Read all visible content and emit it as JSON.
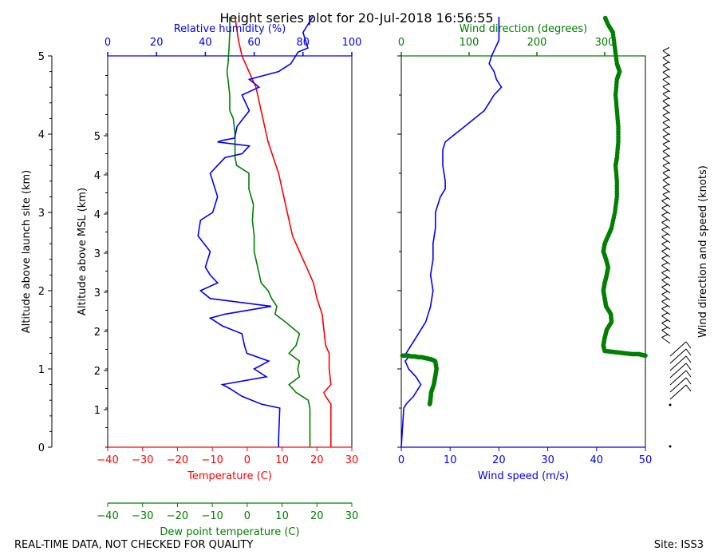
{
  "title": "Height series plot for 20-Jul-2018 16:56:55",
  "footer_left": "REAL-TIME DATA, NOT CHECKED FOR QUALITY",
  "footer_right": "Site: ISS3",
  "colors": {
    "temperature": "#ff0000",
    "dewpoint": "#008000",
    "humidity": "#0000ff",
    "wind_speed": "#0000ff",
    "wind_direction": "#008000",
    "axis": "#000000"
  },
  "chart_data": [
    {
      "type": "line",
      "panel": "thermodynamic",
      "ylabel_left": "Altitude above launch site (km)",
      "ylabel_right": "Altitude above MSL (km)",
      "x_bottom_label": "Temperature (C)",
      "x_bottom2_label": "Dew point temperature (C)",
      "x_top_label": "Relative humidity (%)",
      "x_bottom_ticks": [
        -40,
        -30,
        -20,
        -10,
        0,
        10,
        20,
        30
      ],
      "x_top_ticks": [
        0,
        20,
        40,
        60,
        80,
        100
      ],
      "y_left_ticks": [
        0,
        1,
        2,
        3,
        4,
        5
      ],
      "y_msl_ticks": [
        "1",
        "2",
        "2",
        "3",
        "3",
        "4",
        "4",
        "5"
      ],
      "xlim_temperature": [
        -40,
        30
      ],
      "xlim_humidity": [
        0,
        100
      ],
      "ylim_km": [
        0,
        5
      ],
      "series": [
        {
          "name": "Temperature (C)",
          "x": [
            24,
            24,
            24,
            22.5,
            22,
            24,
            23.5,
            23.5,
            22.5,
            22,
            21.5,
            20,
            19,
            17,
            15,
            13,
            12,
            11,
            10,
            9,
            7.5,
            6,
            5,
            4,
            3,
            2.5,
            1.5,
            0.5,
            -0.5,
            -1.5,
            -2.5,
            -3.5
          ],
          "y": [
            0,
            0.5,
            0.55,
            0.65,
            0.7,
            0.8,
            1.0,
            1.2,
            1.3,
            1.5,
            1.7,
            1.9,
            2.1,
            2.3,
            2.5,
            2.7,
            2.9,
            3.1,
            3.3,
            3.5,
            3.7,
            3.9,
            4.1,
            4.3,
            4.5,
            4.6,
            4.7,
            4.8,
            4.9,
            5.0,
            5.2,
            5.5
          ]
        },
        {
          "name": "Dew point temperature (C)",
          "x": [
            18,
            18,
            18,
            17.5,
            14,
            12,
            15,
            14.5,
            15,
            12,
            14,
            15,
            11,
            8,
            8.5,
            7,
            6,
            4,
            3,
            2,
            2,
            1.5,
            1.8,
            0.5,
            0.5,
            -3,
            -3.5,
            -3.5,
            -3.5,
            -4,
            -5,
            -5,
            -5.5,
            -5.8,
            -5.5,
            -5.2,
            -5,
            -5
          ],
          "y": [
            0,
            0.3,
            0.5,
            0.6,
            0.7,
            0.8,
            0.9,
            1.0,
            1.1,
            1.2,
            1.3,
            1.45,
            1.6,
            1.7,
            1.8,
            1.9,
            2.0,
            2.1,
            2.3,
            2.5,
            2.7,
            2.9,
            3.1,
            3.3,
            3.5,
            3.6,
            3.7,
            3.8,
            4.0,
            4.2,
            4.3,
            4.5,
            4.7,
            4.8,
            4.9,
            5.1,
            5.3,
            5.5
          ]
        },
        {
          "name": "Relative humidity (%)",
          "x": [
            70,
            70,
            70.5,
            63,
            55,
            50,
            47,
            65,
            60,
            66,
            57,
            56,
            55,
            47,
            42,
            48,
            67,
            42,
            38,
            45,
            42,
            40,
            42,
            37,
            38,
            43,
            45,
            42,
            48,
            55,
            58,
            45,
            47,
            52,
            53,
            58,
            55,
            62,
            58,
            70,
            75,
            78,
            82,
            80,
            84
          ],
          "y": [
            0,
            0.1,
            0.5,
            0.55,
            0.65,
            0.75,
            0.8,
            0.9,
            1.0,
            1.1,
            1.2,
            1.3,
            1.45,
            1.55,
            1.65,
            1.7,
            1.8,
            1.9,
            2.0,
            2.1,
            2.2,
            2.3,
            2.5,
            2.7,
            2.9,
            3.0,
            3.2,
            3.5,
            3.7,
            3.75,
            3.85,
            3.9,
            3.92,
            3.95,
            4.1,
            4.3,
            4.5,
            4.6,
            4.7,
            4.8,
            4.9,
            5.05,
            5.1,
            5.3,
            5.5
          ]
        }
      ]
    },
    {
      "type": "line",
      "panel": "wind",
      "x_bottom_label": "Wind speed (m/s)",
      "x_top_label": "Wind direction (degrees)",
      "right_label": "Wind direction and speed (knots)",
      "x_bottom_ticks": [
        0,
        10,
        20,
        30,
        40,
        50
      ],
      "x_top_ticks": [
        0,
        100,
        200,
        300
      ],
      "xlim_speed": [
        0,
        50
      ],
      "xlim_direction": [
        0,
        360
      ],
      "ylim_km": [
        0,
        5
      ],
      "series": [
        {
          "name": "Wind speed (m/s)",
          "x": [
            0,
            0.5,
            1,
            2.5,
            4,
            3,
            1.5,
            0.8,
            1.5,
            1,
            3,
            5,
            6,
            6.5,
            6,
            6.5,
            6.5,
            7,
            7,
            8,
            9,
            9,
            8.5,
            8.5,
            9,
            11,
            13,
            15,
            17,
            19,
            20.5,
            19.5,
            19,
            18,
            18.5,
            20,
            20
          ],
          "y": [
            0,
            0.5,
            0.55,
            0.65,
            0.8,
            0.9,
            1.0,
            1.1,
            1.15,
            1.2,
            1.4,
            1.6,
            1.8,
            2.0,
            2.2,
            2.4,
            2.6,
            2.8,
            3.0,
            3.2,
            3.3,
            3.4,
            3.6,
            3.8,
            3.9,
            4.0,
            4.1,
            4.2,
            4.3,
            4.5,
            4.6,
            4.7,
            4.8,
            4.9,
            5.0,
            5.2,
            5.5
          ]
        },
        {
          "name": "Wind direction (degrees)",
          "x": [
            42,
            43,
            44,
            48,
            50,
            52,
            50,
            45,
            40,
            35,
            30,
            25,
            20,
            15,
            10,
            360,
            355,
            350,
            340,
            330,
            320,
            310,
            300,
            298,
            300,
            303,
            310,
            309,
            302,
            300,
            298,
            300,
            303,
            305,
            302,
            298,
            300,
            305,
            310,
            315,
            318,
            318,
            316,
            318,
            320,
            320,
            318,
            316,
            318,
            322,
            318,
            315,
            312,
            305,
            300
          ],
          "y": [
            0.55,
            0.6,
            0.7,
            0.8,
            0.9,
            1.0,
            1.1,
            1.12,
            1.13,
            1.14,
            1.15,
            1.15,
            1.16,
            1.16,
            1.17,
            1.17,
            1.18,
            1.19,
            1.19,
            1.2,
            1.21,
            1.22,
            1.23,
            1.3,
            1.4,
            1.5,
            1.6,
            1.7,
            1.8,
            1.9,
            2.0,
            2.1,
            2.2,
            2.3,
            2.4,
            2.5,
            2.6,
            2.7,
            2.8,
            3.0,
            3.2,
            3.4,
            3.6,
            3.7,
            3.9,
            4.1,
            4.3,
            4.5,
            4.7,
            4.8,
            4.9,
            5.1,
            5.3,
            5.4,
            5.5
          ]
        }
      ]
    }
  ]
}
